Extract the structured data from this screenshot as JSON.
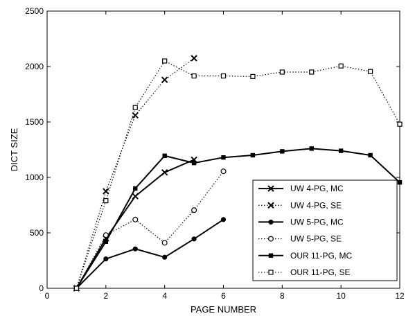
{
  "chart_data": {
    "type": "line",
    "title": "",
    "xlabel": "PAGE NUMBER",
    "ylabel": "DICT SIZE",
    "xlim": [
      0,
      12
    ],
    "ylim": [
      0,
      2500
    ],
    "x_ticks": [
      0,
      2,
      4,
      6,
      8,
      10,
      12
    ],
    "y_ticks": [
      0,
      500,
      1000,
      1500,
      2000,
      2500
    ],
    "grid": false,
    "legend_position": "right-middle",
    "series": [
      {
        "name": "UW 4-PG, MC",
        "line": "solid",
        "marker": "x",
        "x": [
          1,
          2,
          3,
          4,
          5
        ],
        "values": [
          0,
          450,
          830,
          1045,
          1160
        ]
      },
      {
        "name": "UW 4-PG, SE",
        "line": "dotted",
        "marker": "x",
        "x": [
          1,
          2,
          3,
          4,
          5
        ],
        "values": [
          0,
          875,
          1560,
          1880,
          2075
        ]
      },
      {
        "name": "UW 5-PG, MC",
        "line": "solid",
        "marker": "filled-circle",
        "x": [
          1,
          2,
          3,
          4,
          5,
          6
        ],
        "values": [
          0,
          265,
          355,
          280,
          445,
          620
        ]
      },
      {
        "name": "UW 5-PG, SE",
        "line": "dotted",
        "marker": "open-circle",
        "x": [
          1,
          2,
          3,
          4,
          5,
          6
        ],
        "values": [
          0,
          480,
          620,
          410,
          705,
          1055
        ]
      },
      {
        "name": "OUR 11-PG, MC",
        "line": "solid",
        "marker": "filled-square",
        "x": [
          1,
          2,
          3,
          4,
          5,
          6,
          7,
          8,
          9,
          10,
          11,
          12
        ],
        "values": [
          0,
          420,
          900,
          1195,
          1130,
          1180,
          1200,
          1235,
          1260,
          1240,
          1200,
          955
        ]
      },
      {
        "name": "OUR 11-PG, SE",
        "line": "dotted",
        "marker": "open-square",
        "x": [
          1,
          2,
          3,
          4,
          5,
          6,
          7,
          8,
          9,
          10,
          11,
          12
        ],
        "values": [
          0,
          790,
          1630,
          2050,
          1915,
          1915,
          1910,
          1950,
          1950,
          2005,
          1955,
          1480
        ]
      }
    ]
  }
}
